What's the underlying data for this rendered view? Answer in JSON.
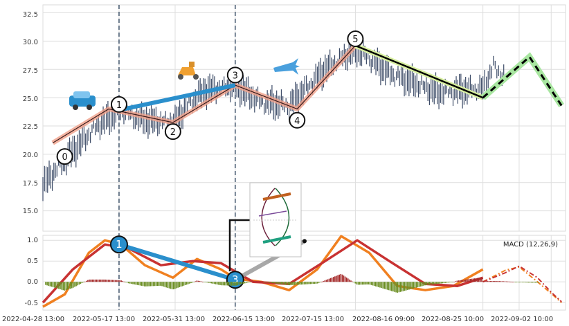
{
  "chart_data": [
    {
      "type": "candlestick",
      "panel": "price",
      "title": "",
      "xlabel": "",
      "ylabel": "",
      "ylim": [
        13.2,
        33.2
      ],
      "yticks": [
        "15.0",
        "17.5",
        "20.0",
        "22.5",
        "25.0",
        "27.5",
        "30.0",
        "32.5"
      ],
      "grid": true,
      "series": [
        {
          "kind": "price_path",
          "color": "#3b4a66",
          "points": [
            {
              "x": "2022-04-28 13:00",
              "y": 17.3
            },
            {
              "x": "2022-05-04",
              "y": 19.5
            },
            {
              "x": "2022-05-08",
              "y": 21.0
            },
            {
              "x": "2022-05-12",
              "y": 22.5
            },
            {
              "x": "2022-05-17 13:00",
              "y": 23.8
            },
            {
              "x": "2022-05-24",
              "y": 23.0
            },
            {
              "x": "2022-05-31 13:00",
              "y": 22.8
            },
            {
              "x": "2022-06-04",
              "y": 24.5
            },
            {
              "x": "2022-06-08",
              "y": 25.6
            },
            {
              "x": "2022-06-15 13:00",
              "y": 26.1
            },
            {
              "x": "2022-06-22",
              "y": 24.6
            },
            {
              "x": "2022-06-29",
              "y": 24.3
            },
            {
              "x": "2022-07-08",
              "y": 27.5
            },
            {
              "x": "2022-07-15 13:00",
              "y": 29.3
            },
            {
              "x": "2022-07-25",
              "y": 27.0
            },
            {
              "x": "2022-08-05",
              "y": 25.5
            },
            {
              "x": "2022-08-16 09:00",
              "y": 25.8
            },
            {
              "x": "2022-08-19",
              "y": 27.8
            },
            {
              "x": "2022-08-22",
              "y": 26.6
            }
          ]
        },
        {
          "kind": "wave_path",
          "color": "#f0a08a",
          "points": [
            {
              "x": "2022-05-01",
              "y": 21.0
            },
            {
              "x": "2022-05-15",
              "y": 24.0
            },
            {
              "x": "2022-05-31",
              "y": 22.8
            },
            {
              "x": "2022-06-15 13:00",
              "y": 26.1
            },
            {
              "x": "2022-07-01",
              "y": 24.0
            },
            {
              "x": "2022-07-15 13:00",
              "y": 29.6
            }
          ]
        },
        {
          "kind": "trend_line",
          "color": "#2a8fcc",
          "points": [
            {
              "x": "2022-05-17 13:00",
              "y": 23.9
            },
            {
              "x": "2022-06-15 13:00",
              "y": 26.1
            }
          ]
        },
        {
          "kind": "projection_solid",
          "color": "#000000",
          "points": [
            {
              "x": "2022-07-15 13:00",
              "y": 29.6
            },
            {
              "x": "2022-08-16 09:00",
              "y": 25.0
            }
          ]
        },
        {
          "kind": "projection_dashed",
          "color": "#000000",
          "points": [
            {
              "x": "2022-08-16 09:00",
              "y": 25.0
            },
            {
              "x": "2022-08-28",
              "y": 28.6
            },
            {
              "x": "2022-09-05",
              "y": 24.3
            }
          ]
        }
      ],
      "wave_labels": [
        {
          "label": "0",
          "x": "2022-05-04",
          "y": 19.8
        },
        {
          "label": "1",
          "x": "2022-05-17 13:00",
          "y": 24.4
        },
        {
          "label": "2",
          "x": "2022-05-31",
          "y": 22.0
        },
        {
          "label": "3",
          "x": "2022-06-15 13:00",
          "y": 27.0
        },
        {
          "label": "4",
          "x": "2022-07-01",
          "y": 23.0
        },
        {
          "label": "5",
          "x": "2022-07-15 13:00",
          "y": 30.2
        }
      ],
      "vlines": [
        "2022-05-17 13:00",
        "2022-06-15 13:00"
      ],
      "icons": [
        "car-icon",
        "scooter-icon",
        "airplane-icon"
      ]
    },
    {
      "type": "macd",
      "panel": "indicator",
      "title": "",
      "legend": "MACD (12,26,9)",
      "legend_position": "top-right",
      "ylim": [
        -0.68,
        1.12
      ],
      "yticks": [
        "-0.5",
        "0.0",
        "0.5",
        "1.0"
      ],
      "xticks": [
        "2022-04-28 13:00",
        "2022-05-17 13:00",
        "2022-05-31 13:00",
        "2022-06-15 13:00",
        "2022-07-15 13:00",
        "2022-08-16 09:00",
        "2022-08-25 10:00",
        "2022-09-02 10:00"
      ],
      "series": [
        {
          "kind": "macd_line",
          "color": "#f08020",
          "points": [
            {
              "x": "2022-04-28 13:00",
              "y": -0.6
            },
            {
              "x": "2022-05-04",
              "y": -0.3
            },
            {
              "x": "2022-05-10",
              "y": 0.7
            },
            {
              "x": "2022-05-14",
              "y": 1.0
            },
            {
              "x": "2022-05-18",
              "y": 0.9
            },
            {
              "x": "2022-05-24",
              "y": 0.4
            },
            {
              "x": "2022-05-31",
              "y": 0.1
            },
            {
              "x": "2022-06-06",
              "y": 0.55
            },
            {
              "x": "2022-06-12",
              "y": 0.3
            },
            {
              "x": "2022-06-15 13:00",
              "y": 0.08
            },
            {
              "x": "2022-06-22",
              "y": 0.0
            },
            {
              "x": "2022-06-29",
              "y": -0.2
            },
            {
              "x": "2022-07-06",
              "y": 0.3
            },
            {
              "x": "2022-07-12",
              "y": 1.1
            },
            {
              "x": "2022-07-19",
              "y": 0.7
            },
            {
              "x": "2022-07-26",
              "y": -0.1
            },
            {
              "x": "2022-08-02",
              "y": -0.2
            },
            {
              "x": "2022-08-09",
              "y": -0.1
            },
            {
              "x": "2022-08-16 09:00",
              "y": 0.3
            }
          ]
        },
        {
          "kind": "signal_line",
          "color": "#c83232",
          "points": [
            {
              "x": "2022-04-28 13:00",
              "y": -0.5
            },
            {
              "x": "2022-05-06",
              "y": 0.3
            },
            {
              "x": "2022-05-14",
              "y": 0.9
            },
            {
              "x": "2022-05-20",
              "y": 0.8
            },
            {
              "x": "2022-05-28",
              "y": 0.4
            },
            {
              "x": "2022-06-05",
              "y": 0.5
            },
            {
              "x": "2022-06-12",
              "y": 0.45
            },
            {
              "x": "2022-06-20",
              "y": 0.0
            },
            {
              "x": "2022-06-29",
              "y": -0.05
            },
            {
              "x": "2022-07-08",
              "y": 0.5
            },
            {
              "x": "2022-07-16",
              "y": 1.0
            },
            {
              "x": "2022-07-24",
              "y": 0.5
            },
            {
              "x": "2022-08-02",
              "y": -0.05
            },
            {
              "x": "2022-08-10",
              "y": -0.1
            },
            {
              "x": "2022-08-16 09:00",
              "y": 0.1
            }
          ]
        },
        {
          "kind": "macd_projection",
          "color": "#f08020",
          "points": [
            {
              "x": "2022-08-16 09:00",
              "y": 0.0
            },
            {
              "x": "2022-08-22",
              "y": 0.28
            },
            {
              "x": "2022-08-25 10:00",
              "y": 0.36
            },
            {
              "x": "2022-08-30",
              "y": 0.0
            },
            {
              "x": "2022-09-02 10:00",
              "y": -0.28
            },
            {
              "x": "2022-09-05",
              "y": -0.5
            }
          ]
        },
        {
          "kind": "signal_projection",
          "color": "#c83232",
          "points": [
            {
              "x": "2022-08-16 09:00",
              "y": 0.0
            },
            {
              "x": "2022-08-22",
              "y": 0.22
            },
            {
              "x": "2022-08-25 10:00",
              "y": 0.38
            },
            {
              "x": "2022-08-30",
              "y": 0.1
            },
            {
              "x": "2022-09-02 10:00",
              "y": -0.25
            },
            {
              "x": "2022-09-05",
              "y": -0.48
            }
          ]
        }
      ],
      "wave_labels": [
        {
          "label": "1",
          "x": "2022-05-17 13:00",
          "y": 0.9
        },
        {
          "label": "3",
          "x": "2022-06-15 13:00",
          "y": 0.05
        }
      ]
    }
  ]
}
